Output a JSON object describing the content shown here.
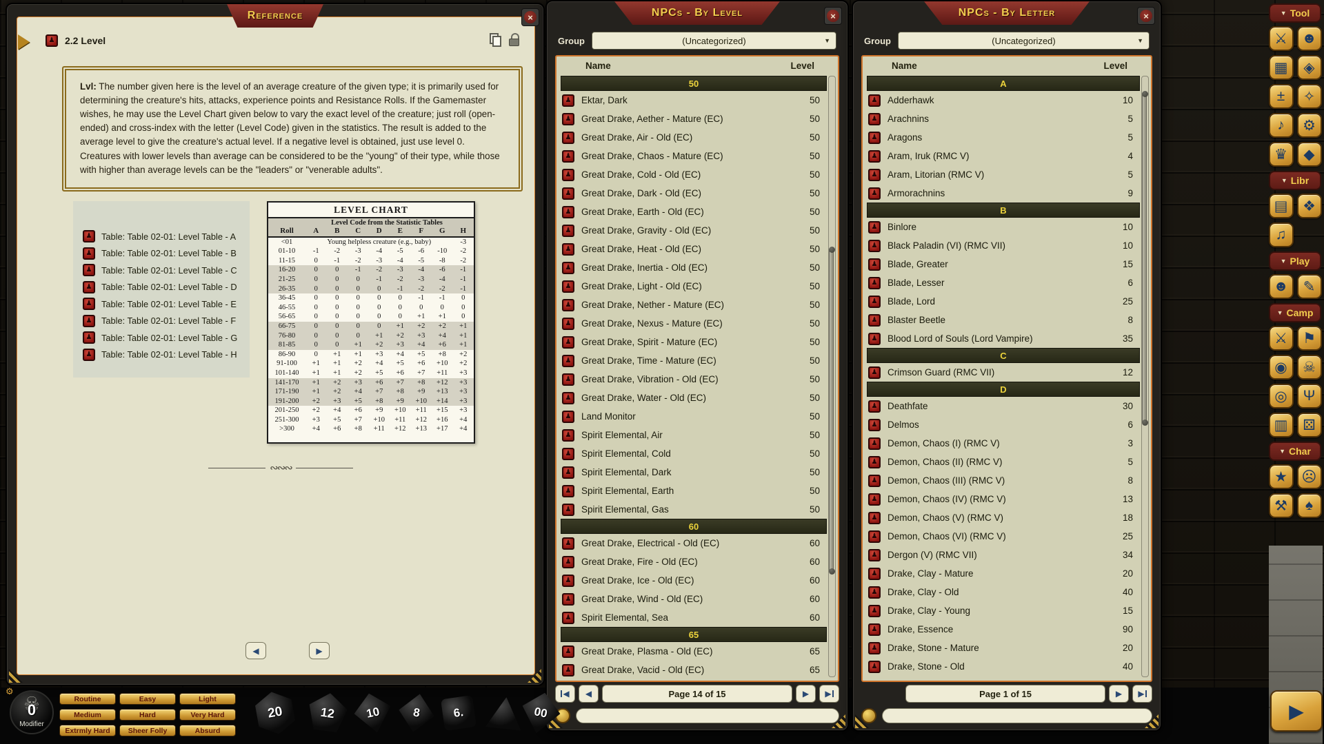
{
  "colors": {
    "accent_orange": "#d0752c",
    "banner_maroon": "#7c2823",
    "gold": "#d9a23b",
    "band_dark": "#2e2f1d",
    "band_text": "#ecd33c",
    "icon_navy": "#1c3a63",
    "content_beige": "#d2d1b5",
    "page_beige": "#e4e2cb"
  },
  "icons": {
    "close": "×",
    "caret_down": "▼",
    "prev": "◀",
    "next": "▶",
    "play": "▶"
  },
  "reference": {
    "title": "Reference",
    "section_title": "2.2 Level",
    "paragraph_lead": "Lvl:",
    "paragraph": " The number given here is the level of an average creature of the given type; it is primarily used for determining the creature's hits, attacks, experience points and Resistance Rolls. If the Gamemaster wishes, he may use the Level Chart given below to vary the exact level of the creature; just roll (open-ended) and cross-index with the letter (Level Code) given in the statistics. The result is added to the average level to give the creature's actual level. If a negative level is obtained, just use level 0. Creatures with lower levels than average can be considered to be the \"young\" of their type, while those with higher than average levels can be the \"leaders\" or \"venerable adults\".",
    "table_links": [
      "Table: Table 02-01: Level Table - A",
      "Table: Table 02-01: Level Table - B",
      "Table: Table 02-01: Level Table - C",
      "Table: Table 02-01: Level Table - D",
      "Table: Table 02-01: Level Table - E",
      "Table: Table 02-01: Level Table - F",
      "Table: Table 02-01: Level Table - G",
      "Table: Table 02-01: Level Table - H"
    ],
    "level_chart": {
      "type": "table",
      "title": "LEVEL CHART",
      "subheader": "Level Code from the Statistic Tables",
      "columns": [
        "Roll",
        "A",
        "B",
        "C",
        "D",
        "E",
        "F",
        "G",
        "H"
      ],
      "special_row": {
        "roll": "<01",
        "text": "Young helpless creature (e.g., baby)",
        "h": "-3"
      },
      "rows": [
        [
          "01-10",
          "-1",
          "-2",
          "-3",
          "-4",
          "-5",
          "-6",
          "-10",
          "-2"
        ],
        [
          "11-15",
          "0",
          "-1",
          "-2",
          "-3",
          "-4",
          "-5",
          "-8",
          "-2"
        ],
        [
          "16-20",
          "0",
          "0",
          "-1",
          "-2",
          "-3",
          "-4",
          "-6",
          "-1"
        ],
        [
          "21-25",
          "0",
          "0",
          "0",
          "-1",
          "-2",
          "-3",
          "-4",
          "-1"
        ],
        [
          "26-35",
          "0",
          "0",
          "0",
          "0",
          "-1",
          "-2",
          "-2",
          "-1"
        ],
        [
          "36-45",
          "0",
          "0",
          "0",
          "0",
          "0",
          "-1",
          "-1",
          "0"
        ],
        [
          "46-55",
          "0",
          "0",
          "0",
          "0",
          "0",
          "0",
          "0",
          "0"
        ],
        [
          "56-65",
          "0",
          "0",
          "0",
          "0",
          "0",
          "+1",
          "+1",
          "0"
        ],
        [
          "66-75",
          "0",
          "0",
          "0",
          "0",
          "+1",
          "+2",
          "+2",
          "+1"
        ],
        [
          "76-80",
          "0",
          "0",
          "0",
          "+1",
          "+2",
          "+3",
          "+4",
          "+1"
        ],
        [
          "81-85",
          "0",
          "0",
          "+1",
          "+2",
          "+3",
          "+4",
          "+6",
          "+1"
        ],
        [
          "86-90",
          "0",
          "+1",
          "+1",
          "+3",
          "+4",
          "+5",
          "+8",
          "+2"
        ],
        [
          "91-100",
          "+1",
          "+1",
          "+2",
          "+4",
          "+5",
          "+6",
          "+10",
          "+2"
        ],
        [
          "101-140",
          "+1",
          "+1",
          "+2",
          "+5",
          "+6",
          "+7",
          "+11",
          "+3"
        ],
        [
          "141-170",
          "+1",
          "+2",
          "+3",
          "+6",
          "+7",
          "+8",
          "+12",
          "+3"
        ],
        [
          "171-190",
          "+1",
          "+2",
          "+4",
          "+7",
          "+8",
          "+9",
          "+13",
          "+3"
        ],
        [
          "191-200",
          "+2",
          "+3",
          "+5",
          "+8",
          "+9",
          "+10",
          "+14",
          "+3"
        ],
        [
          "201-250",
          "+2",
          "+4",
          "+6",
          "+9",
          "+10",
          "+11",
          "+15",
          "+3"
        ],
        [
          "251-300",
          "+3",
          "+5",
          "+7",
          "+10",
          "+11",
          "+12",
          "+16",
          "+4"
        ],
        [
          ">300",
          "+4",
          "+6",
          "+8",
          "+11",
          "+12",
          "+13",
          "+17",
          "+4"
        ]
      ],
      "shaded_rolls": [
        "16-20",
        "21-25",
        "26-35",
        "66-75",
        "76-80",
        "81-85",
        "141-170",
        "171-190",
        "191-200"
      ]
    },
    "divider_glyph": "∾∾∾"
  },
  "npc_windows": [
    {
      "title": "NPCs - By Level",
      "group_label": "Group",
      "group_value": "(Uncategorized)",
      "columns": {
        "name": "Name",
        "level": "Level"
      },
      "groups": [
        {
          "label": "50",
          "items": [
            [
              "Ektar, Dark",
              "50"
            ],
            [
              "Great Drake, Aether - Mature (EC)",
              "50"
            ],
            [
              "Great Drake, Air - Old (EC)",
              "50"
            ],
            [
              "Great Drake, Chaos - Mature (EC)",
              "50"
            ],
            [
              "Great Drake, Cold - Old (EC)",
              "50"
            ],
            [
              "Great Drake, Dark - Old (EC)",
              "50"
            ],
            [
              "Great Drake, Earth - Old (EC)",
              "50"
            ],
            [
              "Great Drake, Gravity - Old (EC)",
              "50"
            ],
            [
              "Great Drake, Heat - Old (EC)",
              "50"
            ],
            [
              "Great Drake, Inertia - Old (EC)",
              "50"
            ],
            [
              "Great Drake, Light - Old (EC)",
              "50"
            ],
            [
              "Great Drake, Nether - Mature (EC)",
              "50"
            ],
            [
              "Great Drake, Nexus - Mature (EC)",
              "50"
            ],
            [
              "Great Drake, Spirit - Mature (EC)",
              "50"
            ],
            [
              "Great Drake, Time - Mature (EC)",
              "50"
            ],
            [
              "Great Drake, Vibration - Old (EC)",
              "50"
            ],
            [
              "Great Drake, Water - Old (EC)",
              "50"
            ],
            [
              "Land Monitor",
              "50"
            ],
            [
              "Spirit Elemental, Air",
              "50"
            ],
            [
              "Spirit Elemental, Cold",
              "50"
            ],
            [
              "Spirit Elemental, Dark",
              "50"
            ],
            [
              "Spirit Elemental, Earth",
              "50"
            ],
            [
              "Spirit Elemental, Gas",
              "50"
            ]
          ]
        },
        {
          "label": "60",
          "items": [
            [
              "Great Drake, Electrical - Old (EC)",
              "60"
            ],
            [
              "Great Drake, Fire - Old (EC)",
              "60"
            ],
            [
              "Great Drake, Ice - Old (EC)",
              "60"
            ],
            [
              "Great Drake, Wind - Old (EC)",
              "60"
            ],
            [
              "Spirit Elemental, Sea",
              "60"
            ]
          ]
        },
        {
          "label": "65",
          "items": [
            [
              "Great Drake, Plasma - Old (EC)",
              "65"
            ],
            [
              "Great Drake, Vacid - Old (EC)",
              "65"
            ]
          ]
        }
      ],
      "page_label": "Page 14 of 15",
      "pager_buttons": [
        "first",
        "prev",
        "text",
        "next",
        "last"
      ]
    },
    {
      "title": "NPCs - By Letter",
      "group_label": "Group",
      "group_value": "(Uncategorized)",
      "columns": {
        "name": "Name",
        "level": "Level"
      },
      "groups": [
        {
          "label": "A",
          "items": [
            [
              "Adderhawk",
              "10"
            ],
            [
              "Arachnins",
              "5"
            ],
            [
              "Aragons",
              "5"
            ],
            [
              "Aram, Iruk (RMC V)",
              "4"
            ],
            [
              "Aram, Litorian (RMC V)",
              "5"
            ],
            [
              "Armorachnins",
              "9"
            ]
          ]
        },
        {
          "label": "B",
          "items": [
            [
              "Binlore",
              "10"
            ],
            [
              "Black Paladin (VI) (RMC VII)",
              "10"
            ],
            [
              "Blade, Greater",
              "15"
            ],
            [
              "Blade, Lesser",
              "6"
            ],
            [
              "Blade, Lord",
              "25"
            ],
            [
              "Blaster Beetle",
              "8"
            ],
            [
              "Blood Lord of Souls (Lord Vampire)",
              "35"
            ]
          ]
        },
        {
          "label": "C",
          "items": [
            [
              "Crimson Guard (RMC VII)",
              "12"
            ]
          ]
        },
        {
          "label": "D",
          "items": [
            [
              "Deathfate",
              "30"
            ],
            [
              "Delmos",
              "6"
            ],
            [
              "Demon, Chaos (I) (RMC V)",
              "3"
            ],
            [
              "Demon, Chaos (II)  (RMC V)",
              "5"
            ],
            [
              "Demon, Chaos (III) (RMC V)",
              "8"
            ],
            [
              "Demon, Chaos (IV) (RMC V)",
              "13"
            ],
            [
              "Demon, Chaos (V) (RMC V)",
              "18"
            ],
            [
              "Demon, Chaos (VI) (RMC V)",
              "25"
            ],
            [
              "Dergon (V) (RMC VII)",
              "34"
            ],
            [
              "Drake, Clay - Mature",
              "20"
            ],
            [
              "Drake, Clay - Old",
              "40"
            ],
            [
              "Drake, Clay - Young",
              "15"
            ],
            [
              "Drake, Essence",
              "90"
            ],
            [
              "Drake, Stone - Mature",
              "20"
            ],
            [
              "Drake, Stone - Old",
              "40"
            ]
          ]
        }
      ],
      "page_label": "Page 1 of 15",
      "pager_buttons": [
        "spacer",
        "spacer",
        "text",
        "next",
        "last"
      ]
    }
  ],
  "toolbar": {
    "sections": [
      {
        "label": "Tool",
        "rows": [
          [
            {
              "name": "crossed-swords-icon",
              "glyph": "⚔"
            },
            {
              "name": "party-icon",
              "glyph": "☻"
            }
          ],
          [
            {
              "name": "calendar-icon",
              "glyph": "▦"
            },
            {
              "name": "d20-die-icon",
              "glyph": "◈"
            }
          ],
          [
            {
              "name": "plus-minus-icon",
              "glyph": "±"
            },
            {
              "name": "effects-sparkle-icon",
              "glyph": "✧"
            }
          ],
          [
            {
              "name": "music-note-icon",
              "glyph": "♪"
            },
            {
              "name": "gear-icon",
              "glyph": "⚙"
            }
          ],
          [
            {
              "name": "crown-icon",
              "glyph": "♛"
            },
            {
              "name": "gem-icon",
              "glyph": "◆"
            }
          ]
        ]
      },
      {
        "label": "Libr",
        "rows": [
          [
            {
              "name": "folder-icon",
              "glyph": "▤"
            },
            {
              "name": "puzzle-icon",
              "glyph": "❖"
            }
          ],
          [
            {
              "name": "music-list-icon",
              "glyph": "♫"
            },
            null
          ]
        ]
      },
      {
        "label": "Play",
        "rows": [
          [
            {
              "name": "characters-icon",
              "glyph": "☻"
            },
            {
              "name": "notes-icon",
              "glyph": "✎"
            }
          ]
        ]
      },
      {
        "label": "Camp",
        "rows": [
          [
            {
              "name": "swords-icon",
              "glyph": "⚔"
            },
            {
              "name": "flag-icon",
              "glyph": "⚑"
            }
          ],
          [
            {
              "name": "loot-bag-icon",
              "glyph": "◉"
            },
            {
              "name": "skull-icon",
              "glyph": "☠"
            }
          ],
          [
            {
              "name": "coins-icon",
              "glyph": "◎"
            },
            {
              "name": "chalice-icon",
              "glyph": "Ψ"
            }
          ],
          [
            {
              "name": "book-icon",
              "glyph": "▥"
            },
            {
              "name": "dice-pair-icon",
              "glyph": "⚄"
            }
          ]
        ]
      },
      {
        "label": "Char",
        "rows": [
          [
            {
              "name": "shield-star-icon",
              "glyph": "★"
            },
            {
              "name": "monster-face-icon",
              "glyph": "☹"
            }
          ],
          [
            {
              "name": "tools-icon",
              "glyph": "⚒"
            },
            {
              "name": "wizard-hat-icon",
              "glyph": "♠"
            }
          ]
        ]
      }
    ],
    "play_button": {
      "name": "play-icon",
      "glyph": "▶"
    }
  },
  "bottombar": {
    "modifier": {
      "value": "0",
      "label": "Modifier",
      "skull_glyph": "☠",
      "gear_glyph": "⚙"
    },
    "difficulty": [
      "Routine",
      "Easy",
      "Light",
      "Medium",
      "Hard",
      "Very Hard",
      "Extrmly Hard",
      "Sheer Folly",
      "Absurd"
    ],
    "dice": [
      {
        "name": "d20-die",
        "label": "20"
      },
      {
        "name": "d12-die",
        "label": "12"
      },
      {
        "name": "d10-die",
        "label": "10"
      },
      {
        "name": "d8-die",
        "label": "8"
      },
      {
        "name": "d6-die",
        "label": "6."
      },
      {
        "name": "d4-die",
        "label": ""
      },
      {
        "name": "d100-die",
        "label": "00"
      }
    ]
  }
}
